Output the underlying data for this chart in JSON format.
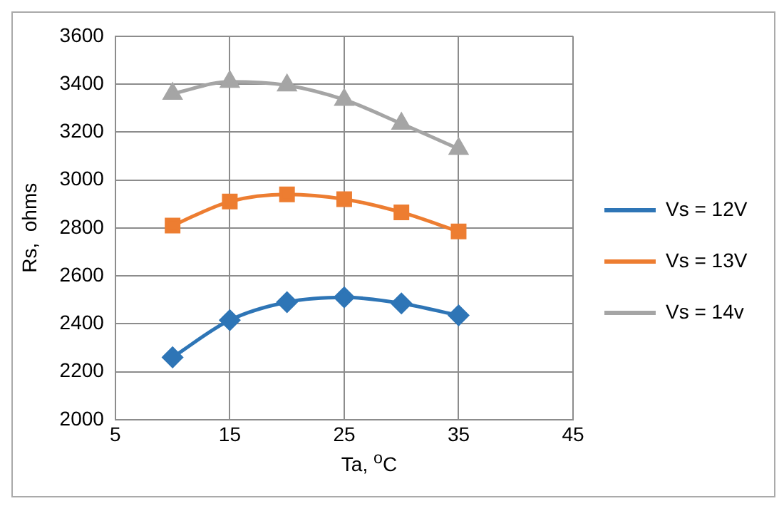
{
  "chart_data": {
    "type": "line",
    "xlabel": "Ta, $^{o}$C",
    "ylabel": "Rs,  ohms",
    "x": [
      10,
      15,
      20,
      25,
      30,
      35
    ],
    "series": [
      {
        "name": "Vs = 12V",
        "color": "#2e75b6",
        "marker": "diamond",
        "values": [
          2260,
          2415,
          2490,
          2510,
          2485,
          2435
        ]
      },
      {
        "name": "Vs = 13V",
        "color": "#ed7d31",
        "marker": "square",
        "values": [
          2810,
          2910,
          2940,
          2920,
          2865,
          2785
        ]
      },
      {
        "name": "Vs = 14v",
        "color": "#a5a5a5",
        "marker": "triangle",
        "values": [
          3360,
          3410,
          3395,
          3335,
          3235,
          3130
        ]
      }
    ],
    "xlim": [
      5,
      45
    ],
    "xticks": [
      5,
      15,
      25,
      35,
      45
    ],
    "ylim": [
      2000,
      3600
    ],
    "yticks": [
      2000,
      2200,
      2400,
      2600,
      2800,
      3000,
      3200,
      3400,
      3600
    ],
    "grid": true,
    "legend": "right"
  }
}
